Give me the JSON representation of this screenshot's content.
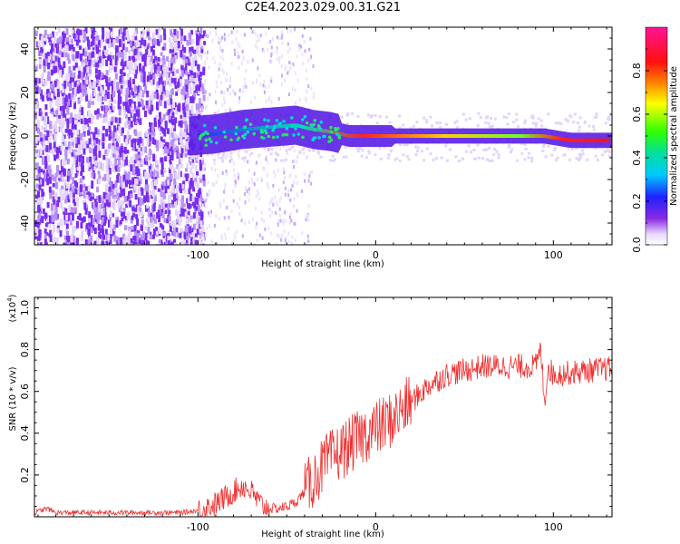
{
  "title": "C2E4.2023.029.00.31.G21",
  "colors": {
    "snr_line": "#ee3030",
    "spectrogram_sparse": "#7a2cf0"
  },
  "chart_data": [
    {
      "type": "heatmap",
      "title": "C2E4.2023.029.00.31.G21",
      "xlabel": "Height of straight line (km)",
      "ylabel": "Frequency (Hz)",
      "xlim": [
        -192,
        133
      ],
      "ylim": [
        -50,
        50
      ],
      "x_ticks": [
        -100,
        0,
        100
      ],
      "x_tick_labels": [
        "-100",
        "0",
        "100"
      ],
      "y_ticks": [
        -40,
        -20,
        0,
        20,
        40
      ],
      "y_tick_labels": [
        "-40",
        "-20",
        "0",
        "20",
        "40"
      ],
      "colorbar": {
        "label": "Normalized spectral amplitude",
        "range": [
          0,
          1
        ],
        "ticks": [
          0.0,
          0.2,
          0.4,
          0.6,
          0.8
        ],
        "tick_labels": [
          "0.0",
          "0.2",
          "0.4",
          "0.6",
          "0.8"
        ],
        "colormap": "rainbow (white to purple to blue to cyan to green to yellow to red to magenta)"
      },
      "signal_ridge": [
        {
          "x": -105,
          "freq": 0,
          "amplitude": 0.2
        },
        {
          "x": -90,
          "freq": 1,
          "amplitude": 0.3
        },
        {
          "x": -75,
          "freq": 3,
          "amplitude": 0.4
        },
        {
          "x": -60,
          "freq": 4,
          "amplitude": 0.4
        },
        {
          "x": -45,
          "freq": 5,
          "amplitude": 0.45
        },
        {
          "x": -35,
          "freq": 3,
          "amplitude": 0.5
        },
        {
          "x": -25,
          "freq": 2,
          "amplitude": 0.6
        },
        {
          "x": -15,
          "freq": 0,
          "amplitude": 0.8
        },
        {
          "x": 0,
          "freq": 0,
          "amplitude": 0.9
        },
        {
          "x": 20,
          "freq": 0,
          "amplitude": 0.85
        },
        {
          "x": 40,
          "freq": 0,
          "amplitude": 0.7
        },
        {
          "x": 60,
          "freq": 0,
          "amplitude": 0.55
        },
        {
          "x": 80,
          "freq": 0,
          "amplitude": 0.5
        },
        {
          "x": 95,
          "freq": 0,
          "amplitude": 0.9
        },
        {
          "x": 110,
          "freq": -2,
          "amplitude": 0.85
        },
        {
          "x": 133,
          "freq": -2,
          "amplitude": 0.8
        }
      ]
    },
    {
      "type": "line",
      "xlabel": "Height of straight line (km)",
      "ylabel": "SNR (10 * v/v)",
      "y_multiplier": "(x10",
      "y_multiplier_exponent": "4",
      "y_multiplier_close": ")",
      "xlim": [
        -192,
        133
      ],
      "ylim": [
        0,
        1.05
      ],
      "x_ticks": [
        -100,
        0,
        100
      ],
      "x_tick_labels": [
        "-100",
        "0",
        "100"
      ],
      "y_ticks": [
        0.2,
        0.4,
        0.6,
        0.8,
        1.0
      ],
      "y_tick_labels": [
        "0.2",
        "0.4",
        "0.6",
        "0.8",
        "1.0"
      ],
      "series": [
        {
          "x": [
            -192,
            -185,
            -180,
            -170,
            -150,
            -130,
            -110,
            -100,
            -90,
            -85,
            -80,
            -75,
            -70,
            -65,
            -60,
            -55,
            -50,
            -45,
            -40,
            -35,
            -30,
            -25,
            -20,
            -15,
            -10,
            -5,
            0,
            10,
            20,
            30,
            40,
            50,
            60,
            70,
            80,
            90,
            93,
            95,
            97,
            100,
            110,
            120,
            133
          ],
          "y": [
            0.02,
            0.04,
            0.02,
            0.02,
            0.02,
            0.02,
            0.02,
            0.03,
            0.06,
            0.09,
            0.12,
            0.15,
            0.12,
            0.06,
            0.04,
            0.04,
            0.05,
            0.07,
            0.12,
            0.18,
            0.24,
            0.28,
            0.31,
            0.34,
            0.37,
            0.4,
            0.42,
            0.47,
            0.55,
            0.63,
            0.68,
            0.7,
            0.72,
            0.72,
            0.72,
            0.72,
            0.8,
            0.55,
            0.72,
            0.68,
            0.69,
            0.7,
            0.71
          ]
        }
      ]
    }
  ]
}
